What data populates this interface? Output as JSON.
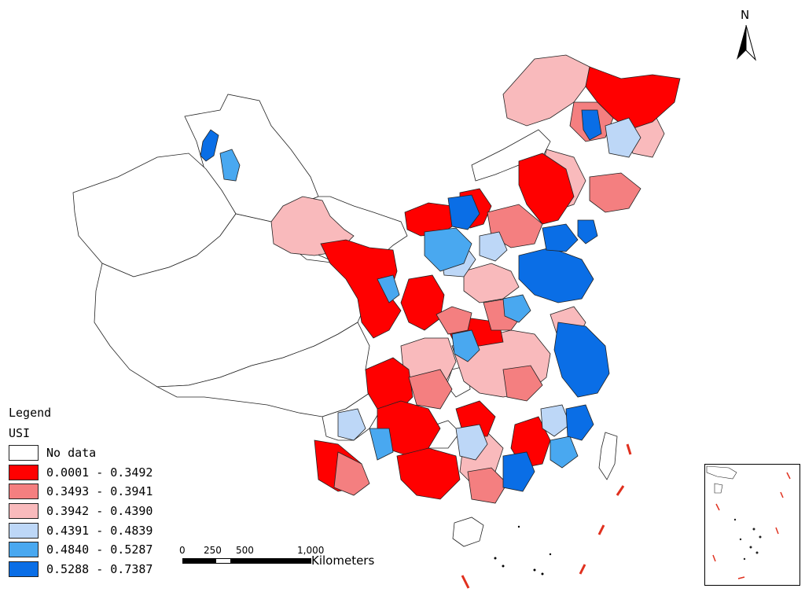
{
  "legend": {
    "heading": "Legend",
    "field": "USI",
    "classes": [
      {
        "label": "No data",
        "color": "#ffffff"
      },
      {
        "label": "0.0001 - 0.3492",
        "color": "#ff0000"
      },
      {
        "label": "0.3493 - 0.3941",
        "color": "#f47f80"
      },
      {
        "label": "0.3942 - 0.4390",
        "color": "#f9babc"
      },
      {
        "label": "0.4391 - 0.4839",
        "color": "#bdd7f7"
      },
      {
        "label": "0.4840 - 0.5287",
        "color": "#49a8f0"
      },
      {
        "label": "0.5288 - 0.7387",
        "color": "#0a6ee6"
      }
    ]
  },
  "north_arrow": {
    "label": "N"
  },
  "scale_bar": {
    "ticks": [
      "0",
      "250",
      "500",
      "1,000"
    ],
    "unit": "Kilometers"
  },
  "map_regions": {
    "icon": "china-prefecture-choropleth",
    "boundary_color": "#222222",
    "dash_line_color": "#e0301e"
  }
}
